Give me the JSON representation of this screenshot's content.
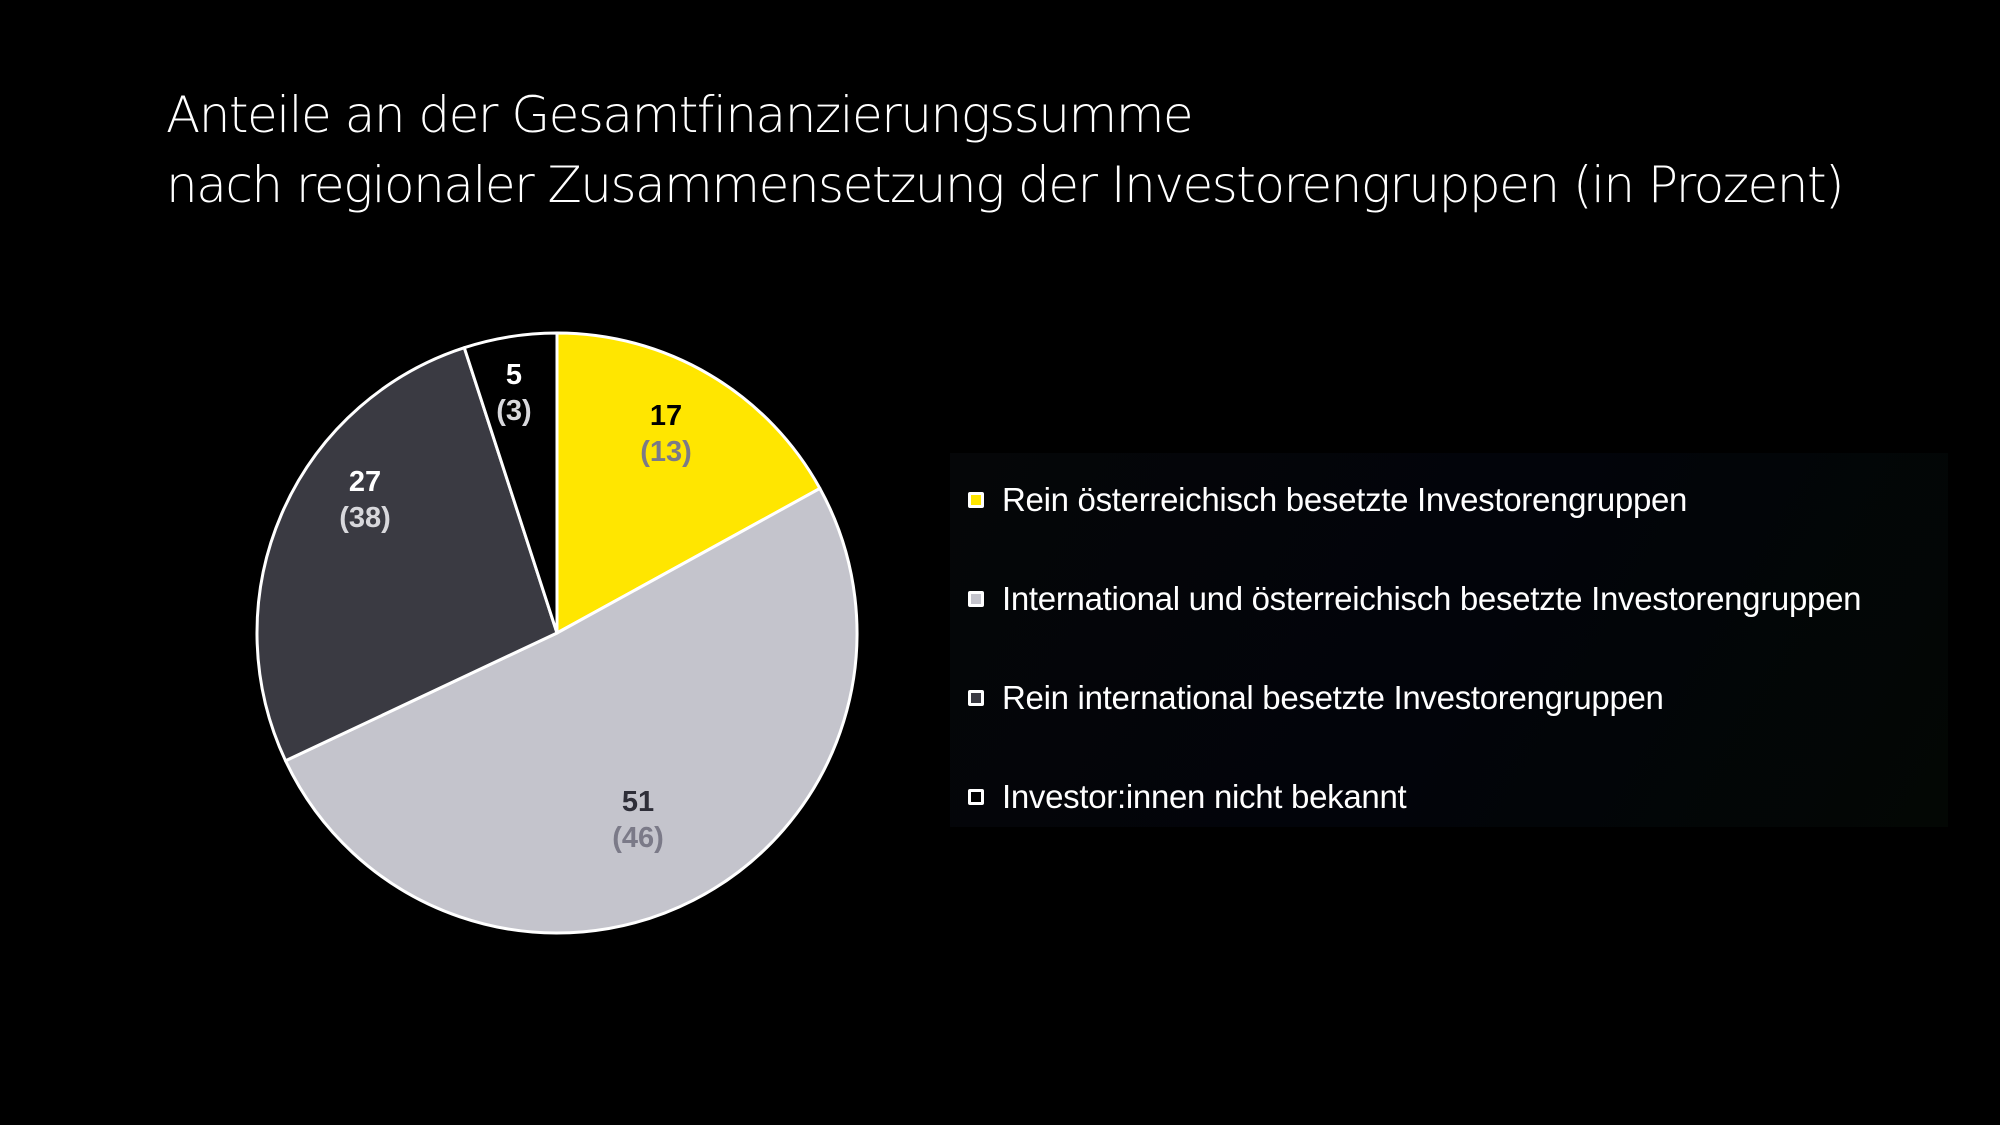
{
  "chart_data": {
    "type": "pie",
    "title": [
      "Anteile an der Gesamtfinanzierungssumme",
      "nach regionaler Zusammensetzung der Investorengruppen (in Prozent)"
    ],
    "slices": [
      {
        "name": "Rein österreichisch besetzte Investorengruppen",
        "value": 17,
        "previous": "(13)",
        "label": "17",
        "color": "#FFE600",
        "label_color": "#000000",
        "sub_color": "#7b7a88"
      },
      {
        "name": "International und österreichisch besetzte Investorengruppen",
        "value": 51,
        "previous": "(46)",
        "label": "51",
        "color": "#C4C4CC",
        "label_color": "#2e2e38",
        "sub_color": "#7b7a88"
      },
      {
        "name": "Rein international besetzte Investorengruppen",
        "value": 27,
        "previous": "(38)",
        "label": "27",
        "color": "#3A3A42",
        "label_color": "#ffffff",
        "sub_color": "#d8d8dc"
      },
      {
        "name": "Investor:innen nicht bekannt",
        "value": 5,
        "previous": "(3)",
        "label": "5",
        "color": "#000000",
        "label_color": "#ffffff",
        "sub_color": "#d8d8dc"
      }
    ],
    "legend_position": "right"
  }
}
